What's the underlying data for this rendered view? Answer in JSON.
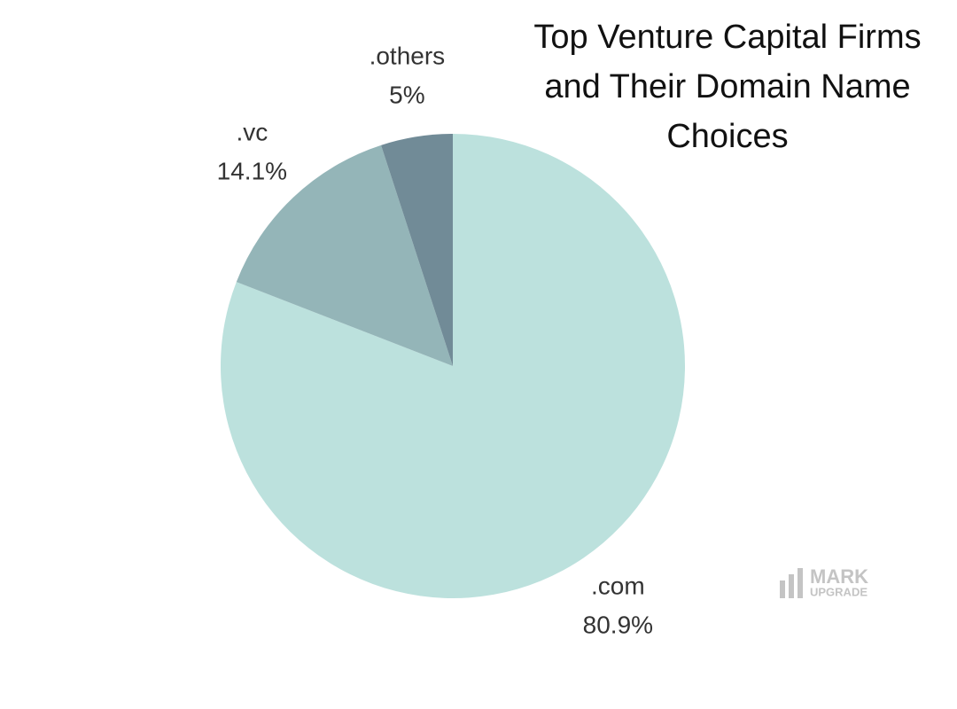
{
  "chart_data": {
    "type": "pie",
    "title": "Top Venture Capital Firms and Their Domain Name Choices",
    "categories": [
      ".com",
      ".vc",
      ".others"
    ],
    "values": [
      80.9,
      14.1,
      5
    ],
    "value_labels": [
      "80.9%",
      "14.1%",
      "5%"
    ],
    "colors": [
      "#bce1dd",
      "#94b5b8",
      "#718b97"
    ],
    "watermark": [
      "MARK",
      "UPGRADE"
    ]
  }
}
